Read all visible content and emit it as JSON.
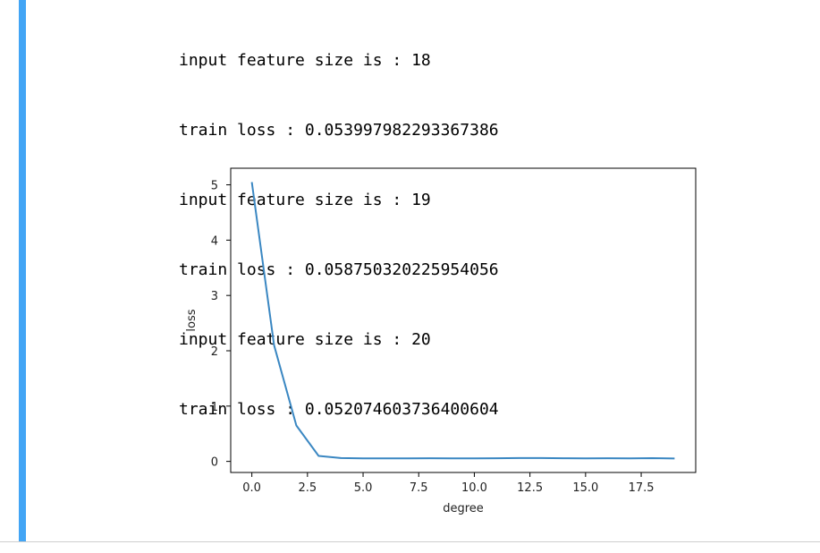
{
  "output": {
    "lines": [
      "input feature size is : 18",
      "train loss : 0.053997982293367386",
      "input feature size is : 19",
      "train loss : 0.058750320225954056",
      "input feature size is : 20",
      "train loss : 0.052074603736400604"
    ]
  },
  "colors": {
    "cell_bar": "#42a5f5",
    "line": "#3a87c2"
  },
  "chart_data": {
    "type": "line",
    "title": "",
    "xlabel": "degree",
    "ylabel": "loss",
    "xlim": [
      -0.95,
      19.95
    ],
    "ylim": [
      -0.2,
      5.3
    ],
    "xticks": [
      0.0,
      2.5,
      5.0,
      7.5,
      10.0,
      12.5,
      15.0,
      17.5
    ],
    "xtick_labels": [
      "0.0",
      "2.5",
      "5.0",
      "7.5",
      "10.0",
      "12.5",
      "15.0",
      "17.5"
    ],
    "yticks": [
      0,
      1,
      2,
      3,
      4,
      5
    ],
    "ytick_labels": [
      "0",
      "1",
      "2",
      "3",
      "4",
      "5"
    ],
    "series": [
      {
        "x": [
          0,
          1,
          2,
          3,
          4,
          5,
          6,
          7,
          8,
          9,
          10,
          11,
          12,
          13,
          14,
          15,
          16,
          17,
          18,
          19
        ],
        "values": [
          5.05,
          2.1,
          0.65,
          0.1,
          0.06,
          0.055,
          0.055,
          0.055,
          0.058,
          0.055,
          0.055,
          0.057,
          0.06,
          0.06,
          0.058,
          0.055,
          0.057,
          0.054,
          0.059,
          0.052
        ]
      }
    ]
  }
}
